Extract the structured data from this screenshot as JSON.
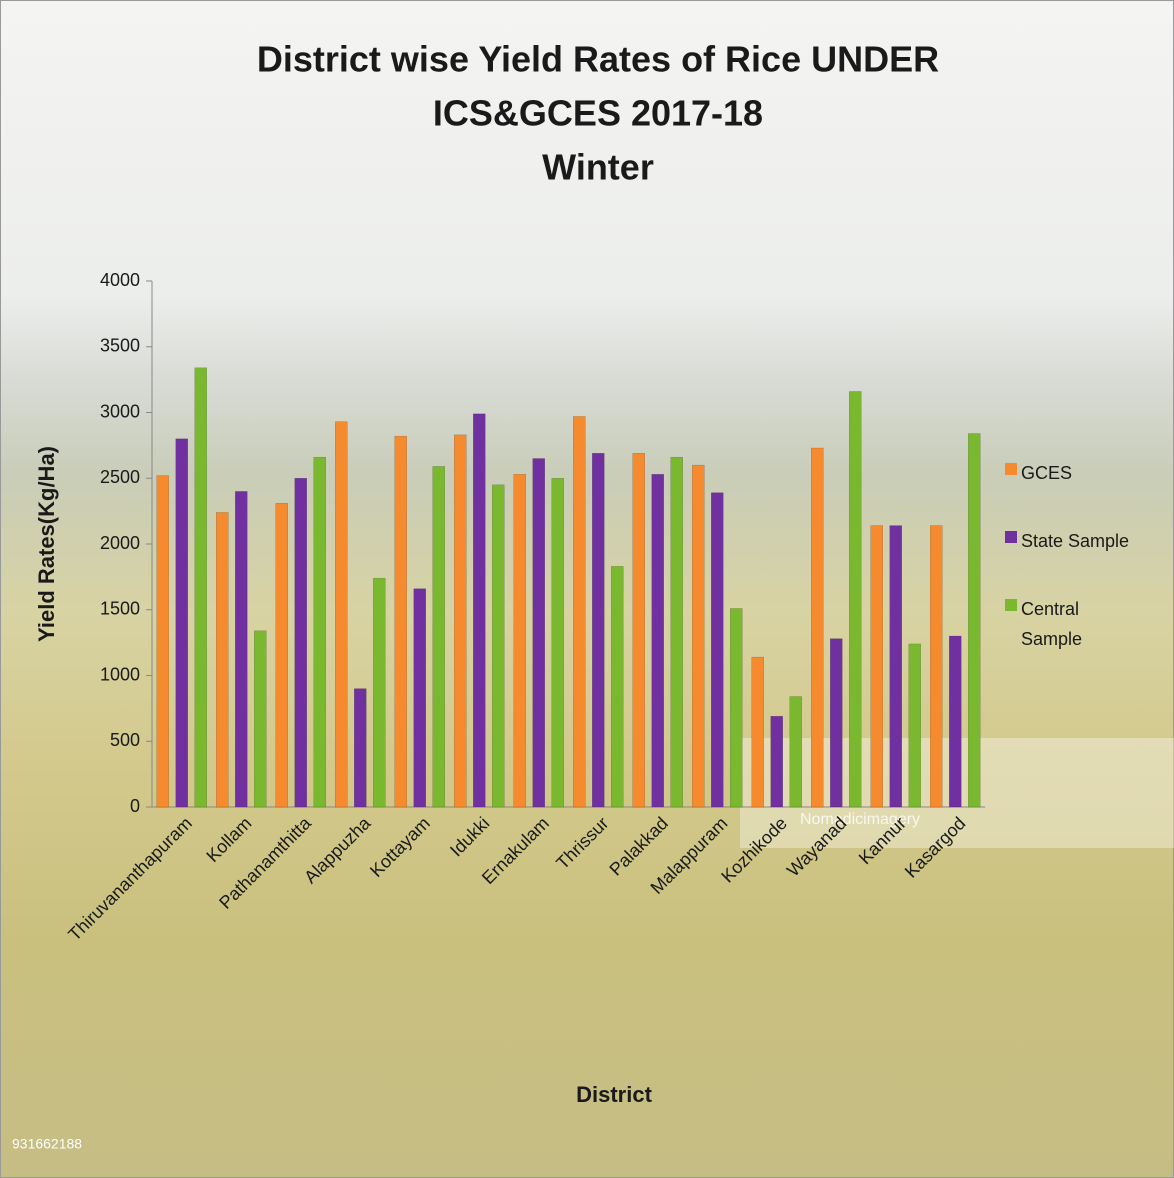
{
  "chart_data": {
    "type": "bar",
    "title": [
      "District wise Yield Rates of Rice  UNDER",
      "ICS&GCES 2017-18",
      "Winter"
    ],
    "x_label": "District",
    "y_label": "Yield Rates(Kg/Ha)",
    "watermarks": [
      "931662188",
      "Nomadicimagery"
    ],
    "categories": [
      "Thiruvananthapuram",
      "Kollam",
      "Pathanamthitta",
      "Alappuzha",
      "Kottayam",
      "Idukki",
      "Ernakulam",
      "Thrissur",
      "Palakkad",
      "Malappuram",
      "Kozhikode",
      "Wayanad",
      "Kannur",
      "Kasargod"
    ],
    "series": [
      {
        "name": "GCES",
        "color": "#f58b2e",
        "values": [
          2520,
          2240,
          2310,
          2930,
          2820,
          2830,
          2530,
          2970,
          2690,
          2600,
          1140,
          2730,
          2140,
          2140
        ]
      },
      {
        "name": "State Sample",
        "color": "#7030a0",
        "values": [
          2800,
          2400,
          2500,
          900,
          1660,
          2990,
          2650,
          2690,
          2530,
          2390,
          690,
          1280,
          2140,
          1300
        ]
      },
      {
        "name": "Central Sample",
        "color": "#7ab830",
        "values": [
          3340,
          1340,
          2660,
          1740,
          2590,
          2450,
          2500,
          1830,
          2660,
          1510,
          840,
          3160,
          1240,
          2840
        ]
      }
    ],
    "ylim": [
      0,
      4000
    ],
    "yticks": [
      0,
      500,
      1000,
      1500,
      2000,
      2500,
      3000,
      3500,
      4000
    ],
    "grid": false,
    "legend": "right"
  }
}
